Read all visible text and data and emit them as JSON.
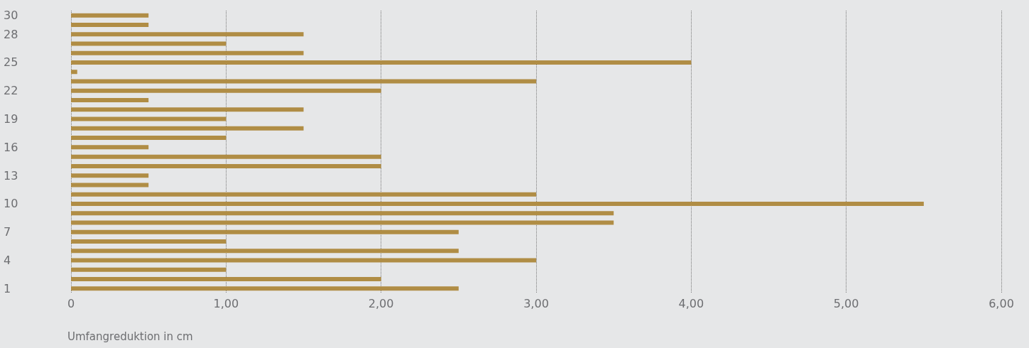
{
  "chart_data": {
    "type": "bar",
    "orientation": "horizontal",
    "xlabel": "Umfangreduktion in cm",
    "categories": [
      "30",
      null,
      "28",
      null,
      null,
      "25",
      null,
      null,
      "22",
      null,
      null,
      "19",
      null,
      null,
      "16",
      null,
      null,
      "13",
      null,
      null,
      "10",
      null,
      null,
      "7",
      null,
      null,
      "4",
      null,
      null,
      "1"
    ],
    "values": [
      0.5,
      0.5,
      1.5,
      1.0,
      1.5,
      4.0,
      0.04,
      3.0,
      2.0,
      0.5,
      1.5,
      1.0,
      1.5,
      1.0,
      0.5,
      2.0,
      2.0,
      0.5,
      0.5,
      3.0,
      5.5,
      3.5,
      3.5,
      2.5,
      1.0,
      2.5,
      3.0,
      1.0,
      2.0,
      2.5
    ],
    "color": "#b08d45",
    "xlim": [
      0,
      6
    ],
    "xticks": [
      0,
      {
        "value": 1,
        "label": "1,00"
      },
      {
        "value": 2,
        "label": "2,00"
      },
      {
        "value": 3,
        "label": "3,00"
      },
      {
        "value": 4,
        "label": "4,00"
      },
      {
        "value": 5,
        "label": "5,00"
      },
      {
        "value": 6,
        "label": "6,00"
      }
    ],
    "grid": "x"
  }
}
